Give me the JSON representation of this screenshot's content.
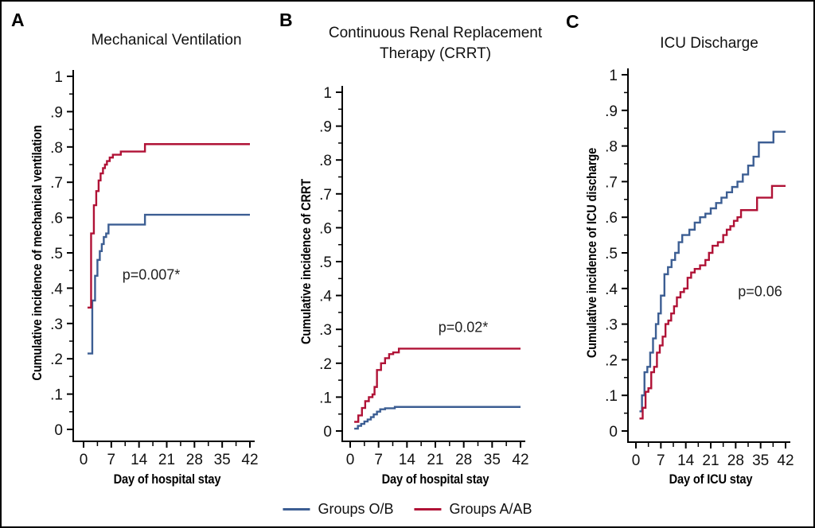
{
  "figure": {
    "background": "#ffffff",
    "border_color": "#000000",
    "colors": {
      "group_ob": "#3C5E93",
      "group_aab": "#B01236",
      "axis": "#000000"
    },
    "legend": {
      "items": [
        {
          "label": "Groups O/B",
          "color": "#3C5E93"
        },
        {
          "label": "Groups A/AB",
          "color": "#B01236"
        }
      ]
    }
  },
  "chart_data": [
    {
      "type": "line",
      "panel": "A",
      "title": "Mechanical Ventilation",
      "xlabel": "Day of hospital stay",
      "ylabel": "Cumulative incidence of mechanical ventilation",
      "xlim": [
        0,
        42
      ],
      "ylim": [
        0,
        1
      ],
      "xticks": [
        0,
        7,
        14,
        21,
        28,
        35,
        42
      ],
      "yticks": [
        {
          "v": 0,
          "label": "0"
        },
        {
          "v": 0.1,
          "label": ".1"
        },
        {
          "v": 0.2,
          "label": ".2"
        },
        {
          "v": 0.3,
          "label": ".3"
        },
        {
          "v": 0.4,
          "label": ".4"
        },
        {
          "v": 0.5,
          "label": ".5"
        },
        {
          "v": 0.6,
          "label": ".6"
        },
        {
          "v": 0.7,
          "label": ".7"
        },
        {
          "v": 0.8,
          "label": ".8"
        },
        {
          "v": 0.9,
          "label": ".9"
        },
        {
          "v": 1,
          "label": "1"
        }
      ],
      "annotation": {
        "text": "p=0.007*",
        "x_day": 18,
        "y_value": 0.44
      },
      "series": [
        {
          "name": "Groups O/B",
          "color": "#3C5E93",
          "step_points": [
            [
              1,
              0.215
            ],
            [
              2.2,
              0.365
            ],
            [
              2.9,
              0.435
            ],
            [
              3.5,
              0.48
            ],
            [
              4.1,
              0.505
            ],
            [
              4.6,
              0.525
            ],
            [
              5.1,
              0.545
            ],
            [
              5.7,
              0.555
            ],
            [
              6.3,
              0.58
            ],
            [
              15.5,
              0.608
            ],
            [
              42,
              0.608
            ]
          ]
        },
        {
          "name": "Groups A/AB",
          "color": "#B01236",
          "step_points": [
            [
              1,
              0.345
            ],
            [
              1.9,
              0.555
            ],
            [
              2.6,
              0.635
            ],
            [
              3.2,
              0.675
            ],
            [
              3.8,
              0.705
            ],
            [
              4.3,
              0.725
            ],
            [
              4.9,
              0.74
            ],
            [
              5.4,
              0.75
            ],
            [
              5.9,
              0.76
            ],
            [
              6.6,
              0.77
            ],
            [
              7.4,
              0.778
            ],
            [
              9.4,
              0.787
            ],
            [
              15.5,
              0.808
            ],
            [
              42,
              0.808
            ]
          ]
        }
      ]
    },
    {
      "type": "line",
      "panel": "B",
      "title": "Continuous Renal Replacement\nTherapy (CRRT)",
      "xlabel": "Day of hospital stay",
      "ylabel": "Cumulative incidence of CRRT",
      "xlim": [
        0,
        42
      ],
      "ylim": [
        0,
        1
      ],
      "xticks": [
        0,
        7,
        14,
        21,
        28,
        35,
        42
      ],
      "yticks": [
        {
          "v": 0,
          "label": "0"
        },
        {
          "v": 0.1,
          "label": ".1"
        },
        {
          "v": 0.2,
          "label": ".2"
        },
        {
          "v": 0.3,
          "label": ".3"
        },
        {
          "v": 0.4,
          "label": ".4"
        },
        {
          "v": 0.5,
          "label": ".5"
        },
        {
          "v": 0.6,
          "label": ".6"
        },
        {
          "v": 0.7,
          "label": ".7"
        },
        {
          "v": 0.8,
          "label": ".8"
        },
        {
          "v": 0.9,
          "label": ".9"
        },
        {
          "v": 1,
          "label": "1"
        }
      ],
      "annotation": {
        "text": "p=0.02*",
        "x_day": 28.5,
        "y_value": 0.3
      },
      "series": [
        {
          "name": "Groups O/B",
          "color": "#3C5E93",
          "step_points": [
            [
              1,
              0.007
            ],
            [
              1.9,
              0.015
            ],
            [
              2.7,
              0.021
            ],
            [
              3.5,
              0.028
            ],
            [
              4.3,
              0.034
            ],
            [
              5.1,
              0.041
            ],
            [
              5.8,
              0.049
            ],
            [
              6.6,
              0.057
            ],
            [
              7.4,
              0.064
            ],
            [
              8.6,
              0.067
            ],
            [
              11,
              0.071
            ],
            [
              42,
              0.071
            ]
          ]
        },
        {
          "name": "Groups A/AB",
          "color": "#B01236",
          "step_points": [
            [
              1,
              0.027
            ],
            [
              2,
              0.046
            ],
            [
              2.9,
              0.068
            ],
            [
              3.7,
              0.088
            ],
            [
              4.6,
              0.1
            ],
            [
              5.5,
              0.108
            ],
            [
              6,
              0.13
            ],
            [
              6.6,
              0.18
            ],
            [
              7.6,
              0.2
            ],
            [
              8.6,
              0.215
            ],
            [
              9.6,
              0.227
            ],
            [
              10.6,
              0.232
            ],
            [
              12,
              0.243
            ],
            [
              42,
              0.243
            ]
          ]
        }
      ]
    },
    {
      "type": "line",
      "panel": "C",
      "title": "ICU Discharge",
      "xlabel": "Day of ICU stay",
      "ylabel": "Cumulative incidence of ICU discharge",
      "xlim": [
        0,
        42
      ],
      "ylim": [
        0,
        1
      ],
      "xticks": [
        0,
        7,
        14,
        21,
        28,
        35,
        42
      ],
      "yticks": [
        {
          "v": 0,
          "label": "0"
        },
        {
          "v": 0.1,
          "label": ".1"
        },
        {
          "v": 0.2,
          "label": ".2"
        },
        {
          "v": 0.3,
          "label": ".3"
        },
        {
          "v": 0.4,
          "label": ".4"
        },
        {
          "v": 0.5,
          "label": ".5"
        },
        {
          "v": 0.6,
          "label": ".6"
        },
        {
          "v": 0.7,
          "label": ".7"
        },
        {
          "v": 0.8,
          "label": ".8"
        },
        {
          "v": 0.9,
          "label": ".9"
        },
        {
          "v": 1,
          "label": "1"
        }
      ],
      "annotation": {
        "text": "p=0.06",
        "x_day": 34,
        "y_value": 0.4
      },
      "series": [
        {
          "name": "Groups O/B",
          "color": "#3C5E93",
          "step_points": [
            [
              1,
              0.055
            ],
            [
              1.7,
              0.1
            ],
            [
              2.4,
              0.165
            ],
            [
              3.2,
              0.18
            ],
            [
              4,
              0.22
            ],
            [
              4.8,
              0.26
            ],
            [
              5.6,
              0.3
            ],
            [
              6.3,
              0.33
            ],
            [
              7,
              0.38
            ],
            [
              8,
              0.44
            ],
            [
              9,
              0.46
            ],
            [
              10,
              0.48
            ],
            [
              11,
              0.5
            ],
            [
              12,
              0.53
            ],
            [
              13,
              0.55
            ],
            [
              15,
              0.565
            ],
            [
              16.5,
              0.585
            ],
            [
              18,
              0.6
            ],
            [
              19.5,
              0.61
            ],
            [
              21,
              0.625
            ],
            [
              22.5,
              0.64
            ],
            [
              24,
              0.655
            ],
            [
              25.5,
              0.67
            ],
            [
              27,
              0.685
            ],
            [
              28.5,
              0.7
            ],
            [
              30,
              0.72
            ],
            [
              31.5,
              0.745
            ],
            [
              33,
              0.77
            ],
            [
              34.5,
              0.81
            ],
            [
              38.6,
              0.84
            ],
            [
              42,
              0.84
            ]
          ]
        },
        {
          "name": "Groups A/AB",
          "color": "#B01236",
          "step_points": [
            [
              1,
              0.035
            ],
            [
              1.9,
              0.065
            ],
            [
              2.7,
              0.11
            ],
            [
              3.5,
              0.12
            ],
            [
              4.3,
              0.165
            ],
            [
              5.1,
              0.18
            ],
            [
              5.9,
              0.22
            ],
            [
              6.7,
              0.24
            ],
            [
              7.5,
              0.265
            ],
            [
              8.3,
              0.3
            ],
            [
              9.1,
              0.31
            ],
            [
              9.9,
              0.33
            ],
            [
              10.7,
              0.35
            ],
            [
              11.5,
              0.375
            ],
            [
              12.5,
              0.39
            ],
            [
              13.5,
              0.4
            ],
            [
              14.5,
              0.43
            ],
            [
              15.5,
              0.445
            ],
            [
              16.5,
              0.455
            ],
            [
              18,
              0.465
            ],
            [
              19.5,
              0.48
            ],
            [
              20.5,
              0.5
            ],
            [
              21.5,
              0.52
            ],
            [
              23,
              0.53
            ],
            [
              24.5,
              0.55
            ],
            [
              25.5,
              0.565
            ],
            [
              26.5,
              0.575
            ],
            [
              27.5,
              0.59
            ],
            [
              28.5,
              0.6
            ],
            [
              29.5,
              0.62
            ],
            [
              34,
              0.655
            ],
            [
              38.2,
              0.688
            ],
            [
              42,
              0.688
            ]
          ]
        }
      ]
    }
  ]
}
